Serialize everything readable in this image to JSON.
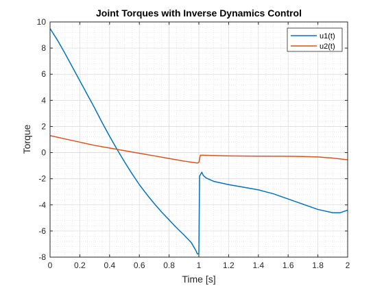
{
  "chart_data": {
    "type": "line",
    "title": "Joint Torques with Inverse Dynamics Control",
    "xlabel": "Time [s]",
    "ylabel": "Torque",
    "xlim": [
      0,
      2
    ],
    "ylim": [
      -8,
      10
    ],
    "xticks": [
      0,
      0.2,
      0.4,
      0.6,
      0.8,
      1,
      1.2,
      1.4,
      1.6,
      1.8,
      2
    ],
    "xtick_labels": [
      "0",
      "0.2",
      "0.4",
      "0.6",
      "0.8",
      "1",
      "1.2",
      "1.4",
      "1.6",
      "1.8",
      "2"
    ],
    "yticks": [
      -8,
      -6,
      -4,
      -2,
      0,
      2,
      4,
      6,
      8,
      10
    ],
    "ytick_labels": [
      "-8",
      "-6",
      "-4",
      "-2",
      "0",
      "2",
      "4",
      "6",
      "8",
      "10"
    ],
    "grid": true,
    "minor_grid": true,
    "legend_position": "top-right",
    "series": [
      {
        "name": "u1(t)",
        "color": "#0072BD",
        "points": [
          [
            0,
            9.5
          ],
          [
            0.05,
            8.6
          ],
          [
            0.1,
            7.6
          ],
          [
            0.15,
            6.55
          ],
          [
            0.2,
            5.5
          ],
          [
            0.25,
            4.45
          ],
          [
            0.3,
            3.4
          ],
          [
            0.35,
            2.3
          ],
          [
            0.4,
            1.25
          ],
          [
            0.45,
            0.25
          ],
          [
            0.5,
            -0.7
          ],
          [
            0.55,
            -1.6
          ],
          [
            0.6,
            -2.45
          ],
          [
            0.65,
            -3.2
          ],
          [
            0.7,
            -3.9
          ],
          [
            0.75,
            -4.55
          ],
          [
            0.8,
            -5.15
          ],
          [
            0.85,
            -5.75
          ],
          [
            0.9,
            -6.3
          ],
          [
            0.95,
            -6.9
          ],
          [
            0.98,
            -7.5
          ],
          [
            0.99,
            -7.75
          ],
          [
            1.0,
            -7.75
          ],
          [
            1.005,
            -1.8
          ],
          [
            1.02,
            -1.5
          ],
          [
            1.03,
            -1.75
          ],
          [
            1.05,
            -1.95
          ],
          [
            1.1,
            -2.2
          ],
          [
            1.2,
            -2.45
          ],
          [
            1.3,
            -2.65
          ],
          [
            1.4,
            -2.85
          ],
          [
            1.5,
            -3.15
          ],
          [
            1.6,
            -3.55
          ],
          [
            1.7,
            -3.95
          ],
          [
            1.8,
            -4.35
          ],
          [
            1.9,
            -4.6
          ],
          [
            1.95,
            -4.6
          ],
          [
            2.0,
            -4.4
          ]
        ]
      },
      {
        "name": "u2(t)",
        "color": "#D95319",
        "points": [
          [
            0,
            1.3
          ],
          [
            0.1,
            1.05
          ],
          [
            0.2,
            0.8
          ],
          [
            0.3,
            0.55
          ],
          [
            0.4,
            0.35
          ],
          [
            0.5,
            0.15
          ],
          [
            0.6,
            -0.05
          ],
          [
            0.7,
            -0.25
          ],
          [
            0.8,
            -0.45
          ],
          [
            0.9,
            -0.65
          ],
          [
            0.99,
            -0.8
          ],
          [
            1.0,
            -0.75
          ],
          [
            1.01,
            -0.2
          ],
          [
            1.03,
            -0.2
          ],
          [
            1.2,
            -0.25
          ],
          [
            1.4,
            -0.27
          ],
          [
            1.6,
            -0.28
          ],
          [
            1.7,
            -0.3
          ],
          [
            1.8,
            -0.33
          ],
          [
            1.9,
            -0.42
          ],
          [
            2.0,
            -0.55
          ]
        ]
      }
    ]
  }
}
